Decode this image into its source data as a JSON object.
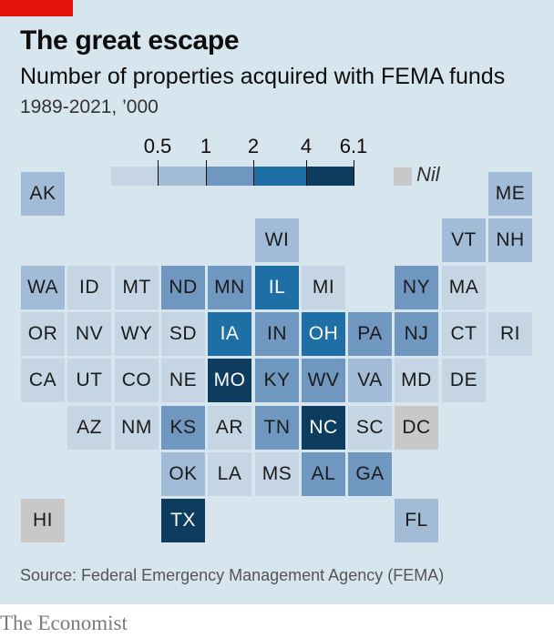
{
  "header": {
    "title": "The great escape",
    "subtitle": "Number of properties acquired with FEMA funds",
    "unit": "1989-2021, ’000"
  },
  "legend": {
    "ticks": [
      "0.5",
      "1",
      "2",
      "4",
      "6.1"
    ],
    "nil_label": "Nil",
    "colors": [
      "#c5d5e3",
      "#a2bcd7",
      "#6f97c0",
      "#1d6fa6",
      "#0d3c5e"
    ],
    "nil_color": "#c8c8c8"
  },
  "map": {
    "states": [
      {
        "abbr": "AK",
        "row": 0,
        "col": 0,
        "bin": 1
      },
      {
        "abbr": "ME",
        "row": 0,
        "col": 10,
        "bin": 1
      },
      {
        "abbr": "WI",
        "row": 1,
        "col": 5,
        "bin": 1
      },
      {
        "abbr": "VT",
        "row": 1,
        "col": 9,
        "bin": 1
      },
      {
        "abbr": "NH",
        "row": 1,
        "col": 10,
        "bin": 1
      },
      {
        "abbr": "WA",
        "row": 2,
        "col": 0,
        "bin": 1
      },
      {
        "abbr": "ID",
        "row": 2,
        "col": 1,
        "bin": 0
      },
      {
        "abbr": "MT",
        "row": 2,
        "col": 2,
        "bin": 0
      },
      {
        "abbr": "ND",
        "row": 2,
        "col": 3,
        "bin": 2
      },
      {
        "abbr": "MN",
        "row": 2,
        "col": 4,
        "bin": 2
      },
      {
        "abbr": "IL",
        "row": 2,
        "col": 5,
        "bin": 3
      },
      {
        "abbr": "MI",
        "row": 2,
        "col": 6,
        "bin": 0
      },
      {
        "abbr": "NY",
        "row": 2,
        "col": 8,
        "bin": 2
      },
      {
        "abbr": "MA",
        "row": 2,
        "col": 9,
        "bin": 0
      },
      {
        "abbr": "OR",
        "row": 3,
        "col": 0,
        "bin": 0
      },
      {
        "abbr": "NV",
        "row": 3,
        "col": 1,
        "bin": 0
      },
      {
        "abbr": "WY",
        "row": 3,
        "col": 2,
        "bin": 0
      },
      {
        "abbr": "SD",
        "row": 3,
        "col": 3,
        "bin": 0
      },
      {
        "abbr": "IA",
        "row": 3,
        "col": 4,
        "bin": 3
      },
      {
        "abbr": "IN",
        "row": 3,
        "col": 5,
        "bin": 2
      },
      {
        "abbr": "OH",
        "row": 3,
        "col": 6,
        "bin": 3
      },
      {
        "abbr": "PA",
        "row": 3,
        "col": 7,
        "bin": 2
      },
      {
        "abbr": "NJ",
        "row": 3,
        "col": 8,
        "bin": 2
      },
      {
        "abbr": "CT",
        "row": 3,
        "col": 9,
        "bin": 0
      },
      {
        "abbr": "RI",
        "row": 3,
        "col": 10,
        "bin": 0
      },
      {
        "abbr": "CA",
        "row": 4,
        "col": 0,
        "bin": 0
      },
      {
        "abbr": "UT",
        "row": 4,
        "col": 1,
        "bin": 0
      },
      {
        "abbr": "CO",
        "row": 4,
        "col": 2,
        "bin": 0
      },
      {
        "abbr": "NE",
        "row": 4,
        "col": 3,
        "bin": 0
      },
      {
        "abbr": "MO",
        "row": 4,
        "col": 4,
        "bin": 4
      },
      {
        "abbr": "KY",
        "row": 4,
        "col": 5,
        "bin": 2
      },
      {
        "abbr": "WV",
        "row": 4,
        "col": 6,
        "bin": 2
      },
      {
        "abbr": "VA",
        "row": 4,
        "col": 7,
        "bin": 1
      },
      {
        "abbr": "MD",
        "row": 4,
        "col": 8,
        "bin": 0
      },
      {
        "abbr": "DE",
        "row": 4,
        "col": 9,
        "bin": 0
      },
      {
        "abbr": "AZ",
        "row": 5,
        "col": 1,
        "bin": 0
      },
      {
        "abbr": "NM",
        "row": 5,
        "col": 2,
        "bin": 0
      },
      {
        "abbr": "KS",
        "row": 5,
        "col": 3,
        "bin": 2
      },
      {
        "abbr": "AR",
        "row": 5,
        "col": 4,
        "bin": 0
      },
      {
        "abbr": "TN",
        "row": 5,
        "col": 5,
        "bin": 2
      },
      {
        "abbr": "NC",
        "row": 5,
        "col": 6,
        "bin": 4
      },
      {
        "abbr": "SC",
        "row": 5,
        "col": 7,
        "bin": 0
      },
      {
        "abbr": "DC",
        "row": 5,
        "col": 8,
        "bin": "nil"
      },
      {
        "abbr": "OK",
        "row": 6,
        "col": 3,
        "bin": 1
      },
      {
        "abbr": "LA",
        "row": 6,
        "col": 4,
        "bin": 0
      },
      {
        "abbr": "MS",
        "row": 6,
        "col": 5,
        "bin": 0
      },
      {
        "abbr": "AL",
        "row": 6,
        "col": 6,
        "bin": 2
      },
      {
        "abbr": "GA",
        "row": 6,
        "col": 7,
        "bin": 2
      },
      {
        "abbr": "HI",
        "row": 7,
        "col": 0,
        "bin": "nil"
      },
      {
        "abbr": "TX",
        "row": 7,
        "col": 3,
        "bin": 4
      },
      {
        "abbr": "FL",
        "row": 7,
        "col": 8,
        "bin": 1
      }
    ]
  },
  "footer": {
    "source": "Source: Federal Emergency Management Agency (FEMA)",
    "brand": "The Economist"
  }
}
